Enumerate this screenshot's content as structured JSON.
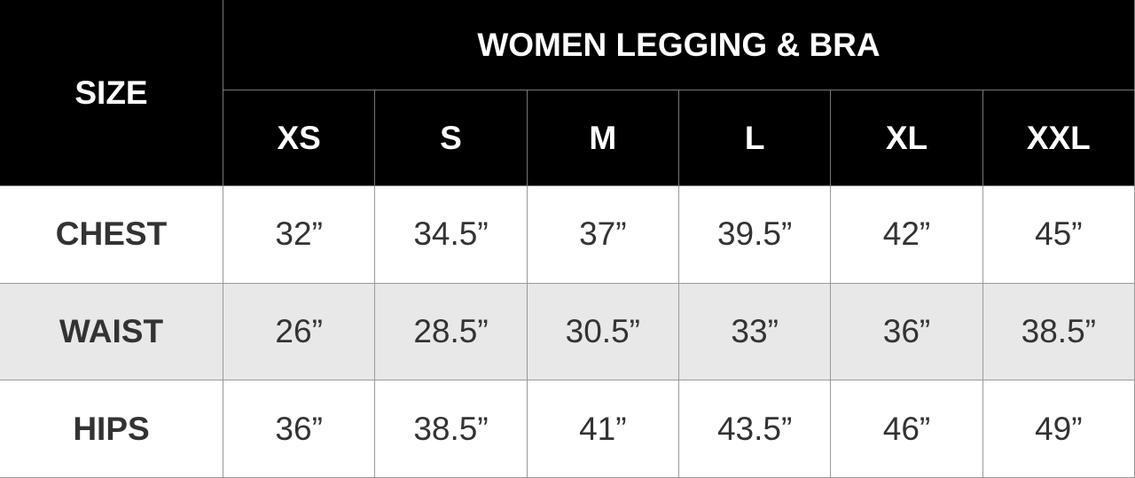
{
  "table": {
    "corner": "SIZE",
    "title": "WOMEN LEGGING & BRA",
    "columns": [
      "XS",
      "S",
      "M",
      "L",
      "XL",
      "XXL"
    ],
    "rows": [
      {
        "label": "CHEST",
        "cells": [
          "32”",
          "34.5”",
          "37”",
          "39.5”",
          "42”",
          "45”"
        ]
      },
      {
        "label": "WAIST",
        "cells": [
          "26”",
          "28.5”",
          "30.5”",
          "33”",
          "36”",
          "38.5”"
        ]
      },
      {
        "label": "HIPS",
        "cells": [
          "36”",
          "38.5”",
          "41”",
          "43.5”",
          "46”",
          "49”"
        ]
      }
    ]
  }
}
